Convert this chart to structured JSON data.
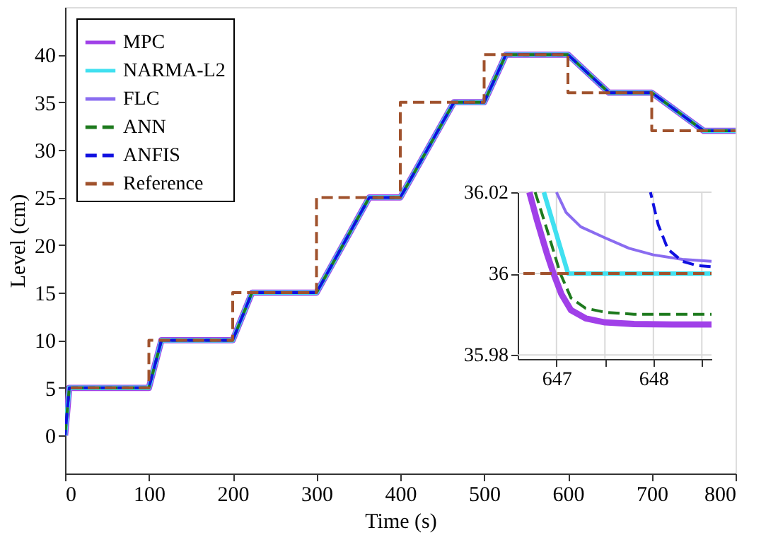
{
  "chart_data": [
    {
      "type": "line",
      "xlabel": "Time (s)",
      "ylabel": "Level (cm)",
      "xlim": [
        0,
        800
      ],
      "xticks": [
        0,
        100,
        200,
        300,
        400,
        500,
        600,
        700,
        800
      ],
      "ylim": [
        -4,
        45
      ],
      "yticks": [
        0,
        5,
        10,
        15,
        20,
        25,
        30,
        35,
        40
      ],
      "legend": "top left",
      "grid": false,
      "series": [
        {
          "name": "MPC",
          "color": "#a040e8",
          "line_style": "solid",
          "x": [
            0,
            5,
            100,
            115,
            200,
            223,
            300,
            363,
            400,
            464,
            500,
            526,
            600,
            649,
            700,
            762,
            800
          ],
          "values": [
            0,
            5,
            5,
            10,
            10,
            15,
            15,
            25,
            25,
            35,
            35,
            40,
            40,
            36,
            36,
            32,
            32
          ]
        },
        {
          "name": "NARMA-L2",
          "color": "#40e0f0",
          "line_style": "solid",
          "x": [
            0,
            5,
            100,
            115,
            200,
            223,
            300,
            363,
            400,
            464,
            500,
            526,
            600,
            649,
            700,
            762,
            800
          ],
          "values": [
            0,
            5,
            5,
            10,
            10,
            15,
            15,
            25,
            25,
            35,
            35,
            40,
            40,
            36,
            36,
            32,
            32
          ]
        },
        {
          "name": "FLC",
          "color": "#8a6cf0",
          "line_style": "solid",
          "x": [
            0,
            5,
            100,
            115,
            200,
            223,
            300,
            363,
            400,
            464,
            500,
            526,
            600,
            649,
            700,
            762,
            800
          ],
          "values": [
            0,
            5,
            5,
            10,
            10,
            15,
            15,
            25,
            25,
            35,
            35,
            40,
            40,
            36,
            36,
            32,
            32
          ]
        },
        {
          "name": "ANN",
          "color": "#1e7a1e",
          "line_style": "dashed",
          "x": [
            0,
            5,
            100,
            115,
            200,
            223,
            300,
            363,
            400,
            464,
            500,
            526,
            600,
            649,
            700,
            762,
            800
          ],
          "values": [
            0,
            5,
            5,
            10,
            10,
            15,
            15,
            25,
            25,
            35,
            35,
            40,
            40,
            36,
            36,
            32,
            32
          ]
        },
        {
          "name": "ANFIS",
          "color": "#1010e0",
          "line_style": "dashed",
          "x": [
            0,
            5,
            100,
            115,
            200,
            223,
            300,
            363,
            400,
            464,
            500,
            526,
            600,
            649,
            700,
            762,
            800
          ],
          "values": [
            0,
            5,
            5,
            10,
            10,
            15,
            15,
            25,
            25,
            35,
            35,
            40,
            40,
            36,
            36,
            32,
            32
          ]
        },
        {
          "name": "Reference",
          "type": "step",
          "color": "#a0522d",
          "line_style": "dashed",
          "x": [
            0,
            100,
            200,
            300,
            400,
            500,
            600,
            700,
            800
          ],
          "values": [
            5,
            10,
            15,
            25,
            35,
            40,
            36,
            32,
            32
          ]
        }
      ]
    },
    {
      "type": "line",
      "xlim": [
        646.6,
        648.6
      ],
      "xticks": [
        647,
        {
          "value": 647.5,
          "label": null
        },
        648,
        {
          "value": 648.5,
          "label": null
        }
      ],
      "ylim": [
        35.979,
        36.02
      ],
      "yticks": [
        35.98,
        36,
        36.02
      ],
      "grid": true,
      "series": [
        {
          "color": "#a040e8",
          "line_style": "solid",
          "x": [
            646.72,
            646.8,
            646.9,
            646.97,
            647.05,
            647.15,
            647.3,
            647.5,
            647.8,
            648.2,
            648.6
          ],
          "values": [
            36.02,
            36.013,
            36.005,
            36.0,
            35.995,
            35.991,
            35.989,
            35.988,
            35.9876,
            35.9875,
            35.9875
          ]
        },
        {
          "color": "#40e0f0",
          "line_style": "solid",
          "x": [
            646.87,
            647.12,
            648.6
          ],
          "values": [
            36.02,
            36.0,
            36.0
          ]
        },
        {
          "color": "#8a6cf0",
          "line_style": "solid",
          "x": [
            647.0,
            647.1,
            647.25,
            647.5,
            647.75,
            648.0,
            648.3,
            648.6
          ],
          "values": [
            36.02,
            36.015,
            36.0115,
            36.0088,
            36.0062,
            36.0046,
            36.0035,
            36.003
          ]
        },
        {
          "color": "#1e7a1e",
          "line_style": "dashed",
          "x": [
            646.78,
            646.9,
            647.04,
            647.15,
            647.3,
            647.5,
            647.8,
            648.6
          ],
          "values": [
            36.02,
            36.011,
            36.0,
            35.994,
            35.9915,
            35.9905,
            35.99,
            35.99
          ]
        },
        {
          "color": "#1010e0",
          "line_style": "dashed",
          "x": [
            647.97,
            648.05,
            648.15,
            648.3,
            648.45,
            648.6
          ],
          "values": [
            36.02,
            36.012,
            36.006,
            36.003,
            36.002,
            36.0017
          ]
        },
        {
          "color": "#a0522d",
          "line_style": "dashed",
          "x": [
            646.6,
            648.6
          ],
          "values": [
            36.0,
            36.0
          ]
        }
      ]
    }
  ]
}
